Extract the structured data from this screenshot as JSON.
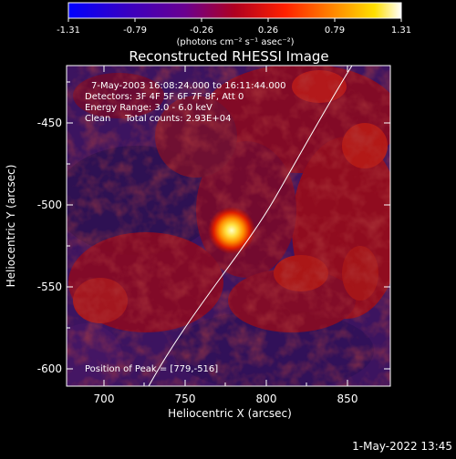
{
  "colorbar": {
    "ticks": [
      "-1.31",
      "-0.79",
      "-0.26",
      "0.26",
      "0.79",
      "1.31"
    ],
    "units": "(photons cm⁻² s⁻¹ asec⁻²)",
    "min": -1.31,
    "max": 1.31
  },
  "title": "Reconstructed RHESSI Image",
  "annotations": {
    "time": "7-May-2003 16:08:24.000 to 16:11:44.000",
    "detectors": "Detectors: 3F 4F 5F 6F 7F 8F, Att 0",
    "energy": "Energy Range: 3.0 - 6.0 keV",
    "clean": "Clean     Total counts: 2.93E+04",
    "peak": "Position of Peak = [779,-516]"
  },
  "axes": {
    "xlabel": "Heliocentric X (arcsec)",
    "ylabel": "Heliocentric Y (arcsec)",
    "xticks": [
      "700",
      "750",
      "800",
      "850"
    ],
    "yticks": [
      "-450",
      "-500",
      "-550",
      "-600"
    ],
    "xlim": [
      680,
      870
    ],
    "ylim": [
      -615,
      -420
    ]
  },
  "peak_position": [
    779,
    -516
  ],
  "timestamp": "1-May-2022 13:45",
  "colors": {
    "background": "#000000",
    "limb_line": "#ffffff"
  }
}
